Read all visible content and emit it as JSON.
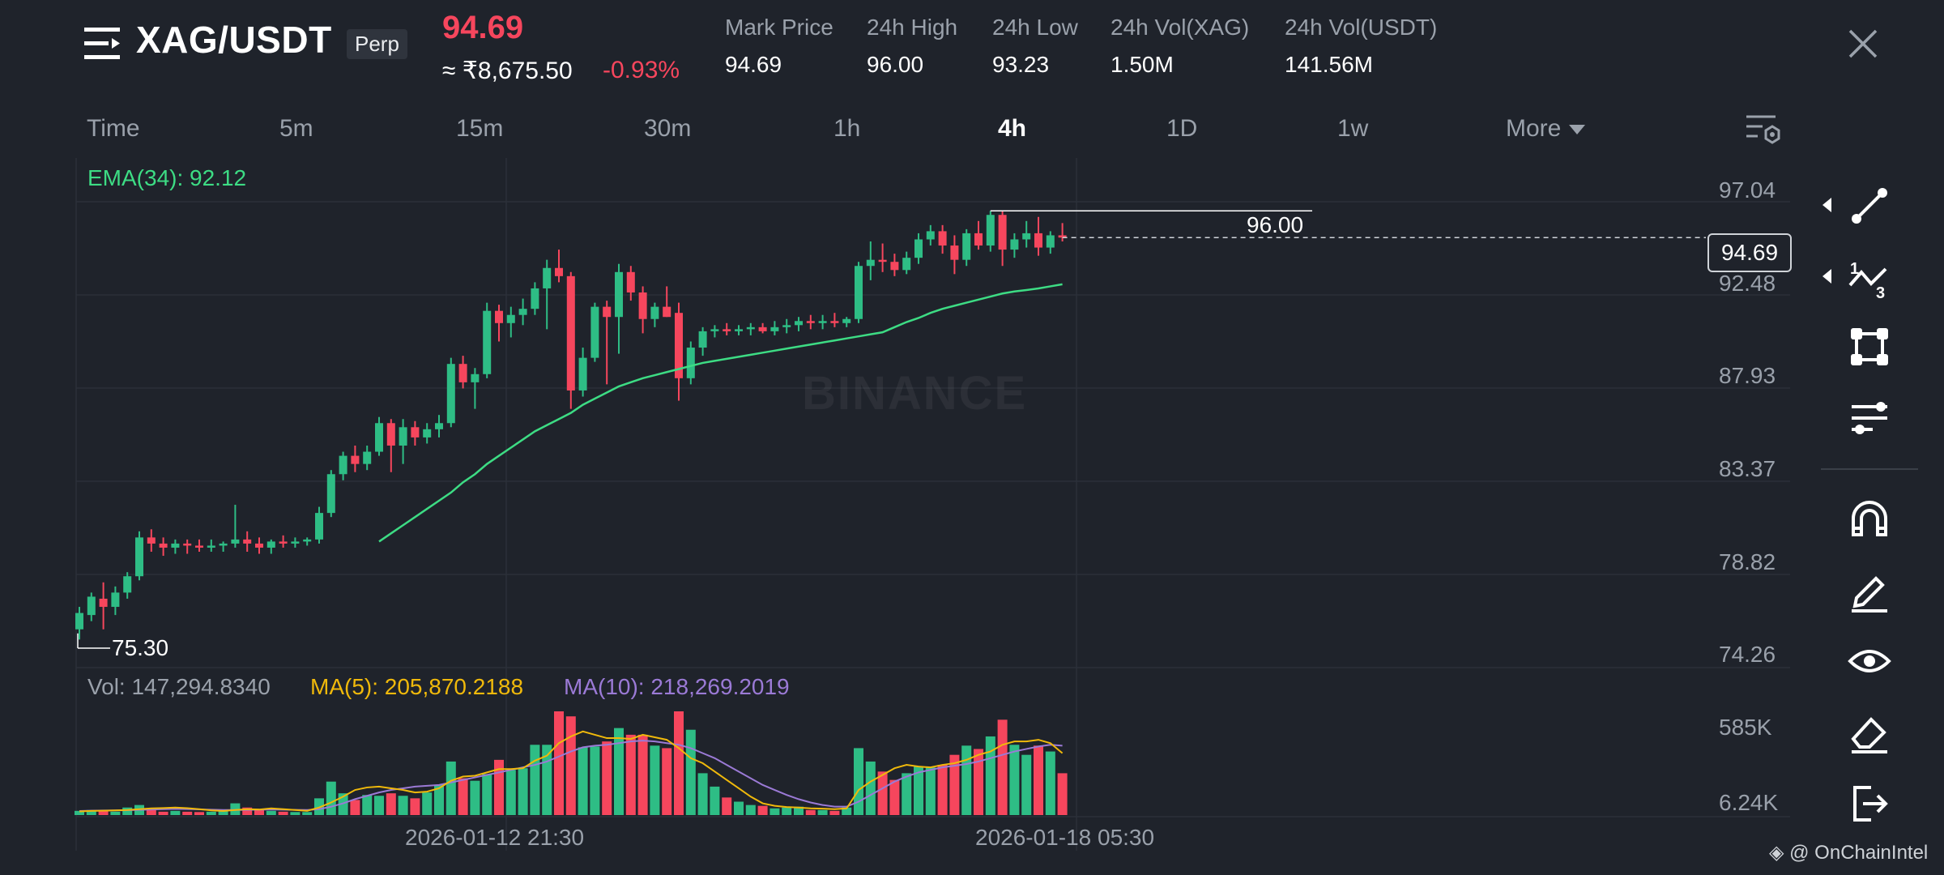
{
  "header": {
    "symbol": "XAG/USDT",
    "contract_type": "Perp",
    "last_price": "94.69",
    "local_price": "≈ ₹8,675.50",
    "change_pct": "-0.93%",
    "stats": [
      {
        "label": "Mark Price",
        "value": "94.69"
      },
      {
        "label": "24h High",
        "value": "96.00"
      },
      {
        "label": "24h Low",
        "value": "93.23"
      },
      {
        "label": "24h Vol(XAG)",
        "value": "1.50M"
      },
      {
        "label": "24h Vol(USDT)",
        "value": "141.56M"
      }
    ]
  },
  "timeframes": {
    "items": [
      "Time",
      "5m",
      "15m",
      "30m",
      "1h",
      "4h",
      "1D",
      "1w"
    ],
    "active": "4h",
    "more_label": "More"
  },
  "indicators": {
    "ema": "EMA(34): 92.12",
    "vol": "Vol: 147,294.8340",
    "ma5": "MA(5): 205,870.2188",
    "ma10": "MA(10): 218,269.2019"
  },
  "watermark": "BINANCE",
  "credit": "@ OnChainIntel",
  "colors": {
    "up": "#2ebd85",
    "down": "#f6465d",
    "ema": "#3ddc84",
    "ma5": "#f0b90b",
    "ma10": "#9b7ad6",
    "background": "#1f232b"
  },
  "icons": {
    "toolbar": [
      "trend-line-icon",
      "fib-tool-icon",
      "shape-tool-icon",
      "indicator-settings-icon",
      "magnet-icon",
      "pencil-icon",
      "eye-icon",
      "eraser-icon",
      "exit-icon"
    ]
  },
  "chart_data": {
    "type": "candlestick",
    "symbol": "XAG/USDT",
    "interval": "4h",
    "price_axis": {
      "ticks": [
        "97.04",
        "92.48",
        "87.93",
        "83.37",
        "78.82",
        "74.26"
      ],
      "range": [
        74.26,
        97.04
      ],
      "current_price": "94.69",
      "high_marker": "96.00",
      "low_marker": "75.30"
    },
    "volume_axis": {
      "ticks": [
        "585K",
        "6.24K"
      ]
    },
    "time_axis": {
      "ticks": [
        "2026-01-12 21:30",
        "2026-01-18 05:30"
      ]
    },
    "candles": [
      {
        "o": 75.5,
        "h": 76.6,
        "l": 75.0,
        "c": 76.3
      },
      {
        "o": 76.2,
        "h": 77.3,
        "l": 75.9,
        "c": 77.1
      },
      {
        "o": 77.0,
        "h": 77.8,
        "l": 75.5,
        "c": 76.6
      },
      {
        "o": 76.6,
        "h": 77.6,
        "l": 76.2,
        "c": 77.3
      },
      {
        "o": 77.3,
        "h": 78.3,
        "l": 77.0,
        "c": 78.1
      },
      {
        "o": 78.1,
        "h": 80.3,
        "l": 77.9,
        "c": 80.0
      },
      {
        "o": 80.0,
        "h": 80.4,
        "l": 79.3,
        "c": 79.7
      },
      {
        "o": 79.7,
        "h": 80.0,
        "l": 79.1,
        "c": 79.5
      },
      {
        "o": 79.5,
        "h": 79.9,
        "l": 79.2,
        "c": 79.7
      },
      {
        "o": 79.7,
        "h": 79.9,
        "l": 79.2,
        "c": 79.6
      },
      {
        "o": 79.6,
        "h": 79.9,
        "l": 79.3,
        "c": 79.5
      },
      {
        "o": 79.5,
        "h": 79.9,
        "l": 79.3,
        "c": 79.6
      },
      {
        "o": 79.6,
        "h": 79.8,
        "l": 79.3,
        "c": 79.7
      },
      {
        "o": 79.7,
        "h": 81.6,
        "l": 79.5,
        "c": 79.9
      },
      {
        "o": 79.9,
        "h": 80.3,
        "l": 79.3,
        "c": 79.7
      },
      {
        "o": 79.7,
        "h": 80.0,
        "l": 79.2,
        "c": 79.5
      },
      {
        "o": 79.5,
        "h": 79.9,
        "l": 79.2,
        "c": 79.8
      },
      {
        "o": 79.8,
        "h": 80.1,
        "l": 79.5,
        "c": 79.7
      },
      {
        "o": 79.7,
        "h": 80.0,
        "l": 79.5,
        "c": 79.8
      },
      {
        "o": 79.8,
        "h": 80.0,
        "l": 79.6,
        "c": 79.9
      },
      {
        "o": 79.9,
        "h": 81.5,
        "l": 79.7,
        "c": 81.2
      },
      {
        "o": 81.2,
        "h": 83.3,
        "l": 81.0,
        "c": 83.1
      },
      {
        "o": 83.1,
        "h": 84.2,
        "l": 82.8,
        "c": 84.0
      },
      {
        "o": 84.0,
        "h": 84.5,
        "l": 83.2,
        "c": 83.6
      },
      {
        "o": 83.6,
        "h": 84.5,
        "l": 83.3,
        "c": 84.2
      },
      {
        "o": 84.2,
        "h": 85.9,
        "l": 84.0,
        "c": 85.6
      },
      {
        "o": 85.6,
        "h": 85.8,
        "l": 83.2,
        "c": 84.5
      },
      {
        "o": 84.5,
        "h": 85.8,
        "l": 83.6,
        "c": 85.4
      },
      {
        "o": 85.4,
        "h": 85.7,
        "l": 84.5,
        "c": 84.9
      },
      {
        "o": 84.9,
        "h": 85.6,
        "l": 84.6,
        "c": 85.3
      },
      {
        "o": 85.3,
        "h": 86.0,
        "l": 84.9,
        "c": 85.6
      },
      {
        "o": 85.6,
        "h": 88.8,
        "l": 85.4,
        "c": 88.5
      },
      {
        "o": 88.5,
        "h": 88.9,
        "l": 87.3,
        "c": 87.6
      },
      {
        "o": 87.6,
        "h": 88.3,
        "l": 86.3,
        "c": 88.0
      },
      {
        "o": 88.0,
        "h": 91.5,
        "l": 87.8,
        "c": 91.1
      },
      {
        "o": 91.1,
        "h": 91.4,
        "l": 89.6,
        "c": 90.5
      },
      {
        "o": 90.5,
        "h": 91.3,
        "l": 89.8,
        "c": 90.9
      },
      {
        "o": 90.9,
        "h": 91.7,
        "l": 90.4,
        "c": 91.2
      },
      {
        "o": 91.2,
        "h": 92.5,
        "l": 90.9,
        "c": 92.2
      },
      {
        "o": 92.2,
        "h": 93.6,
        "l": 90.2,
        "c": 93.2
      },
      {
        "o": 93.2,
        "h": 94.1,
        "l": 92.5,
        "c": 92.8
      },
      {
        "o": 92.8,
        "h": 93.0,
        "l": 86.3,
        "c": 87.2
      },
      {
        "o": 87.2,
        "h": 89.3,
        "l": 86.9,
        "c": 88.8
      },
      {
        "o": 88.8,
        "h": 91.5,
        "l": 88.6,
        "c": 91.3
      },
      {
        "o": 91.3,
        "h": 91.6,
        "l": 87.5,
        "c": 90.8
      },
      {
        "o": 90.8,
        "h": 93.4,
        "l": 89.0,
        "c": 93.0
      },
      {
        "o": 93.0,
        "h": 93.3,
        "l": 91.6,
        "c": 92.0
      },
      {
        "o": 92.0,
        "h": 92.3,
        "l": 90.0,
        "c": 90.7
      },
      {
        "o": 90.7,
        "h": 91.5,
        "l": 90.3,
        "c": 91.3
      },
      {
        "o": 91.3,
        "h": 92.3,
        "l": 90.8,
        "c": 90.8
      },
      {
        "o": 91.0,
        "h": 91.5,
        "l": 86.7,
        "c": 87.8
      },
      {
        "o": 87.8,
        "h": 89.6,
        "l": 87.5,
        "c": 89.3
      },
      {
        "o": 89.3,
        "h": 90.3,
        "l": 88.9,
        "c": 90.1
      },
      {
        "o": 90.1,
        "h": 90.4,
        "l": 89.8,
        "c": 90.2
      },
      {
        "o": 90.2,
        "h": 90.5,
        "l": 89.9,
        "c": 90.1
      },
      {
        "o": 90.1,
        "h": 90.4,
        "l": 89.9,
        "c": 90.2
      },
      {
        "o": 90.2,
        "h": 90.5,
        "l": 89.9,
        "c": 90.3
      },
      {
        "o": 90.3,
        "h": 90.5,
        "l": 90.0,
        "c": 90.1
      },
      {
        "o": 90.1,
        "h": 90.6,
        "l": 89.9,
        "c": 90.3
      },
      {
        "o": 90.3,
        "h": 90.7,
        "l": 90.0,
        "c": 90.4
      },
      {
        "o": 90.4,
        "h": 90.8,
        "l": 90.1,
        "c": 90.6
      },
      {
        "o": 90.6,
        "h": 90.9,
        "l": 90.2,
        "c": 90.5
      },
      {
        "o": 90.5,
        "h": 90.9,
        "l": 90.2,
        "c": 90.6
      },
      {
        "o": 90.6,
        "h": 91.0,
        "l": 90.3,
        "c": 90.5
      },
      {
        "o": 90.5,
        "h": 90.8,
        "l": 90.3,
        "c": 90.7
      },
      {
        "o": 90.7,
        "h": 93.5,
        "l": 90.5,
        "c": 93.3
      },
      {
        "o": 93.3,
        "h": 94.5,
        "l": 92.6,
        "c": 93.6
      },
      {
        "o": 93.6,
        "h": 94.4,
        "l": 93.0,
        "c": 93.5
      },
      {
        "o": 93.5,
        "h": 93.9,
        "l": 92.8,
        "c": 93.1
      },
      {
        "o": 93.1,
        "h": 94.0,
        "l": 92.9,
        "c": 93.7
      },
      {
        "o": 93.7,
        "h": 94.9,
        "l": 93.4,
        "c": 94.6
      },
      {
        "o": 94.6,
        "h": 95.3,
        "l": 94.3,
        "c": 95.0
      },
      {
        "o": 95.0,
        "h": 95.3,
        "l": 93.9,
        "c": 94.3
      },
      {
        "o": 94.3,
        "h": 94.8,
        "l": 92.9,
        "c": 93.6
      },
      {
        "o": 93.6,
        "h": 95.1,
        "l": 93.3,
        "c": 94.9
      },
      {
        "o": 94.9,
        "h": 95.5,
        "l": 94.1,
        "c": 94.3
      },
      {
        "o": 94.3,
        "h": 96.0,
        "l": 94.0,
        "c": 95.8
      },
      {
        "o": 95.8,
        "h": 96.0,
        "l": 93.3,
        "c": 94.1
      },
      {
        "o": 94.1,
        "h": 94.9,
        "l": 93.7,
        "c": 94.6
      },
      {
        "o": 94.6,
        "h": 95.5,
        "l": 94.2,
        "c": 94.9
      },
      {
        "o": 94.9,
        "h": 95.7,
        "l": 93.8,
        "c": 94.2
      },
      {
        "o": 94.2,
        "h": 95.0,
        "l": 93.9,
        "c": 94.8
      },
      {
        "o": 94.8,
        "h": 95.4,
        "l": 94.5,
        "c": 94.69
      }
    ],
    "volume_k": [
      25,
      30,
      28,
      20,
      45,
      60,
      40,
      20,
      25,
      20,
      18,
      20,
      22,
      70,
      45,
      30,
      25,
      20,
      18,
      18,
      100,
      200,
      130,
      90,
      120,
      115,
      130,
      115,
      100,
      135,
      180,
      320,
      220,
      205,
      245,
      330,
      270,
      280,
      420,
      420,
      620,
      590,
      405,
      410,
      440,
      520,
      480,
      480,
      415,
      400,
      620,
      510,
      250,
      170,
      105,
      80,
      60,
      55,
      40,
      45,
      50,
      30,
      30,
      25,
      45,
      400,
      320,
      260,
      210,
      250,
      290,
      285,
      300,
      360,
      415,
      395,
      470,
      570,
      420,
      360,
      415,
      380,
      250
    ],
    "ema34_start_index": 25,
    "ema34": [
      79.8,
      80.2,
      80.6,
      81.0,
      81.4,
      81.8,
      82.2,
      82.7,
      83.1,
      83.6,
      84.0,
      84.4,
      84.8,
      85.2,
      85.5,
      85.8,
      86.1,
      86.5,
      86.8,
      87.1,
      87.4,
      87.6,
      87.8,
      87.95,
      88.1,
      88.25,
      88.4,
      88.55,
      88.65,
      88.75,
      88.85,
      88.95,
      89.05,
      89.15,
      89.25,
      89.35,
      89.45,
      89.55,
      89.65,
      89.75,
      89.85,
      89.95,
      90.05,
      90.3,
      90.55,
      90.75,
      91.0,
      91.2,
      91.35,
      91.5,
      91.65,
      91.8,
      91.95,
      92.05,
      92.12,
      92.2,
      92.3,
      92.4
    ],
    "ma5": [
      22,
      25,
      26,
      28,
      30,
      35,
      40,
      42,
      45,
      41,
      35,
      28,
      24,
      30,
      35,
      33,
      40,
      35,
      30,
      25,
      45,
      75,
      110,
      150,
      165,
      170,
      160,
      150,
      135,
      140,
      160,
      205,
      230,
      235,
      255,
      275,
      275,
      280,
      325,
      355,
      430,
      470,
      500,
      480,
      460,
      460,
      455,
      480,
      465,
      450,
      400,
      340,
      310,
      260,
      210,
      160,
      110,
      70,
      55,
      48,
      45,
      40,
      38,
      35,
      40,
      150,
      200,
      240,
      280,
      300,
      290,
      285,
      300,
      310,
      330,
      360,
      380,
      420,
      440,
      440,
      450,
      430,
      370
    ],
    "ma10": [
      24,
      26,
      27,
      28,
      29,
      31,
      33,
      35,
      37,
      36,
      34,
      32,
      30,
      30,
      31,
      32,
      33,
      32,
      31,
      30,
      35,
      50,
      70,
      95,
      115,
      135,
      150,
      160,
      170,
      175,
      180,
      195,
      210,
      225,
      240,
      255,
      270,
      285,
      300,
      320,
      350,
      380,
      405,
      415,
      420,
      430,
      440,
      445,
      440,
      430,
      420,
      400,
      370,
      340,
      300,
      260,
      220,
      180,
      150,
      120,
      95,
      75,
      60,
      50,
      50,
      80,
      120,
      160,
      200,
      230,
      255,
      270,
      285,
      295,
      305,
      320,
      340,
      360,
      380,
      395,
      410,
      420,
      415
    ]
  }
}
